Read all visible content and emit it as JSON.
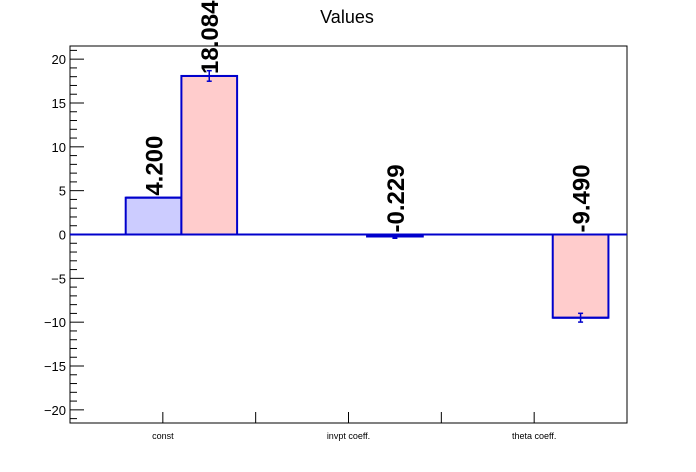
{
  "chart_data": {
    "type": "bar",
    "title": "Values",
    "xlabel": "",
    "ylabel": "",
    "ylim": [
      -21.5,
      21.5
    ],
    "yticks": [
      -20,
      -15,
      -10,
      -5,
      0,
      5,
      10,
      15,
      20
    ],
    "ytick_labels": [
      "−20",
      "−15",
      "−10",
      "−5",
      "0",
      "5",
      "10",
      "15",
      "20"
    ],
    "categories": [
      "const",
      "invpt coeff.",
      "theta coeff."
    ],
    "grid": false,
    "series": [
      {
        "fill": "#ccccff",
        "stroke": "#0000cc",
        "values": [
          4.2,
          null,
          null
        ],
        "errors": [
          0,
          null,
          null
        ],
        "labels": [
          "4.200",
          "",
          ""
        ]
      },
      {
        "fill": "#ffcccc",
        "stroke": "#0000cc",
        "values": [
          18.084,
          -0.229,
          -9.49
        ],
        "errors": [
          0.6,
          0.2,
          0.5
        ],
        "labels": [
          "18.084",
          "-0.229",
          "-9.490"
        ]
      }
    ]
  }
}
